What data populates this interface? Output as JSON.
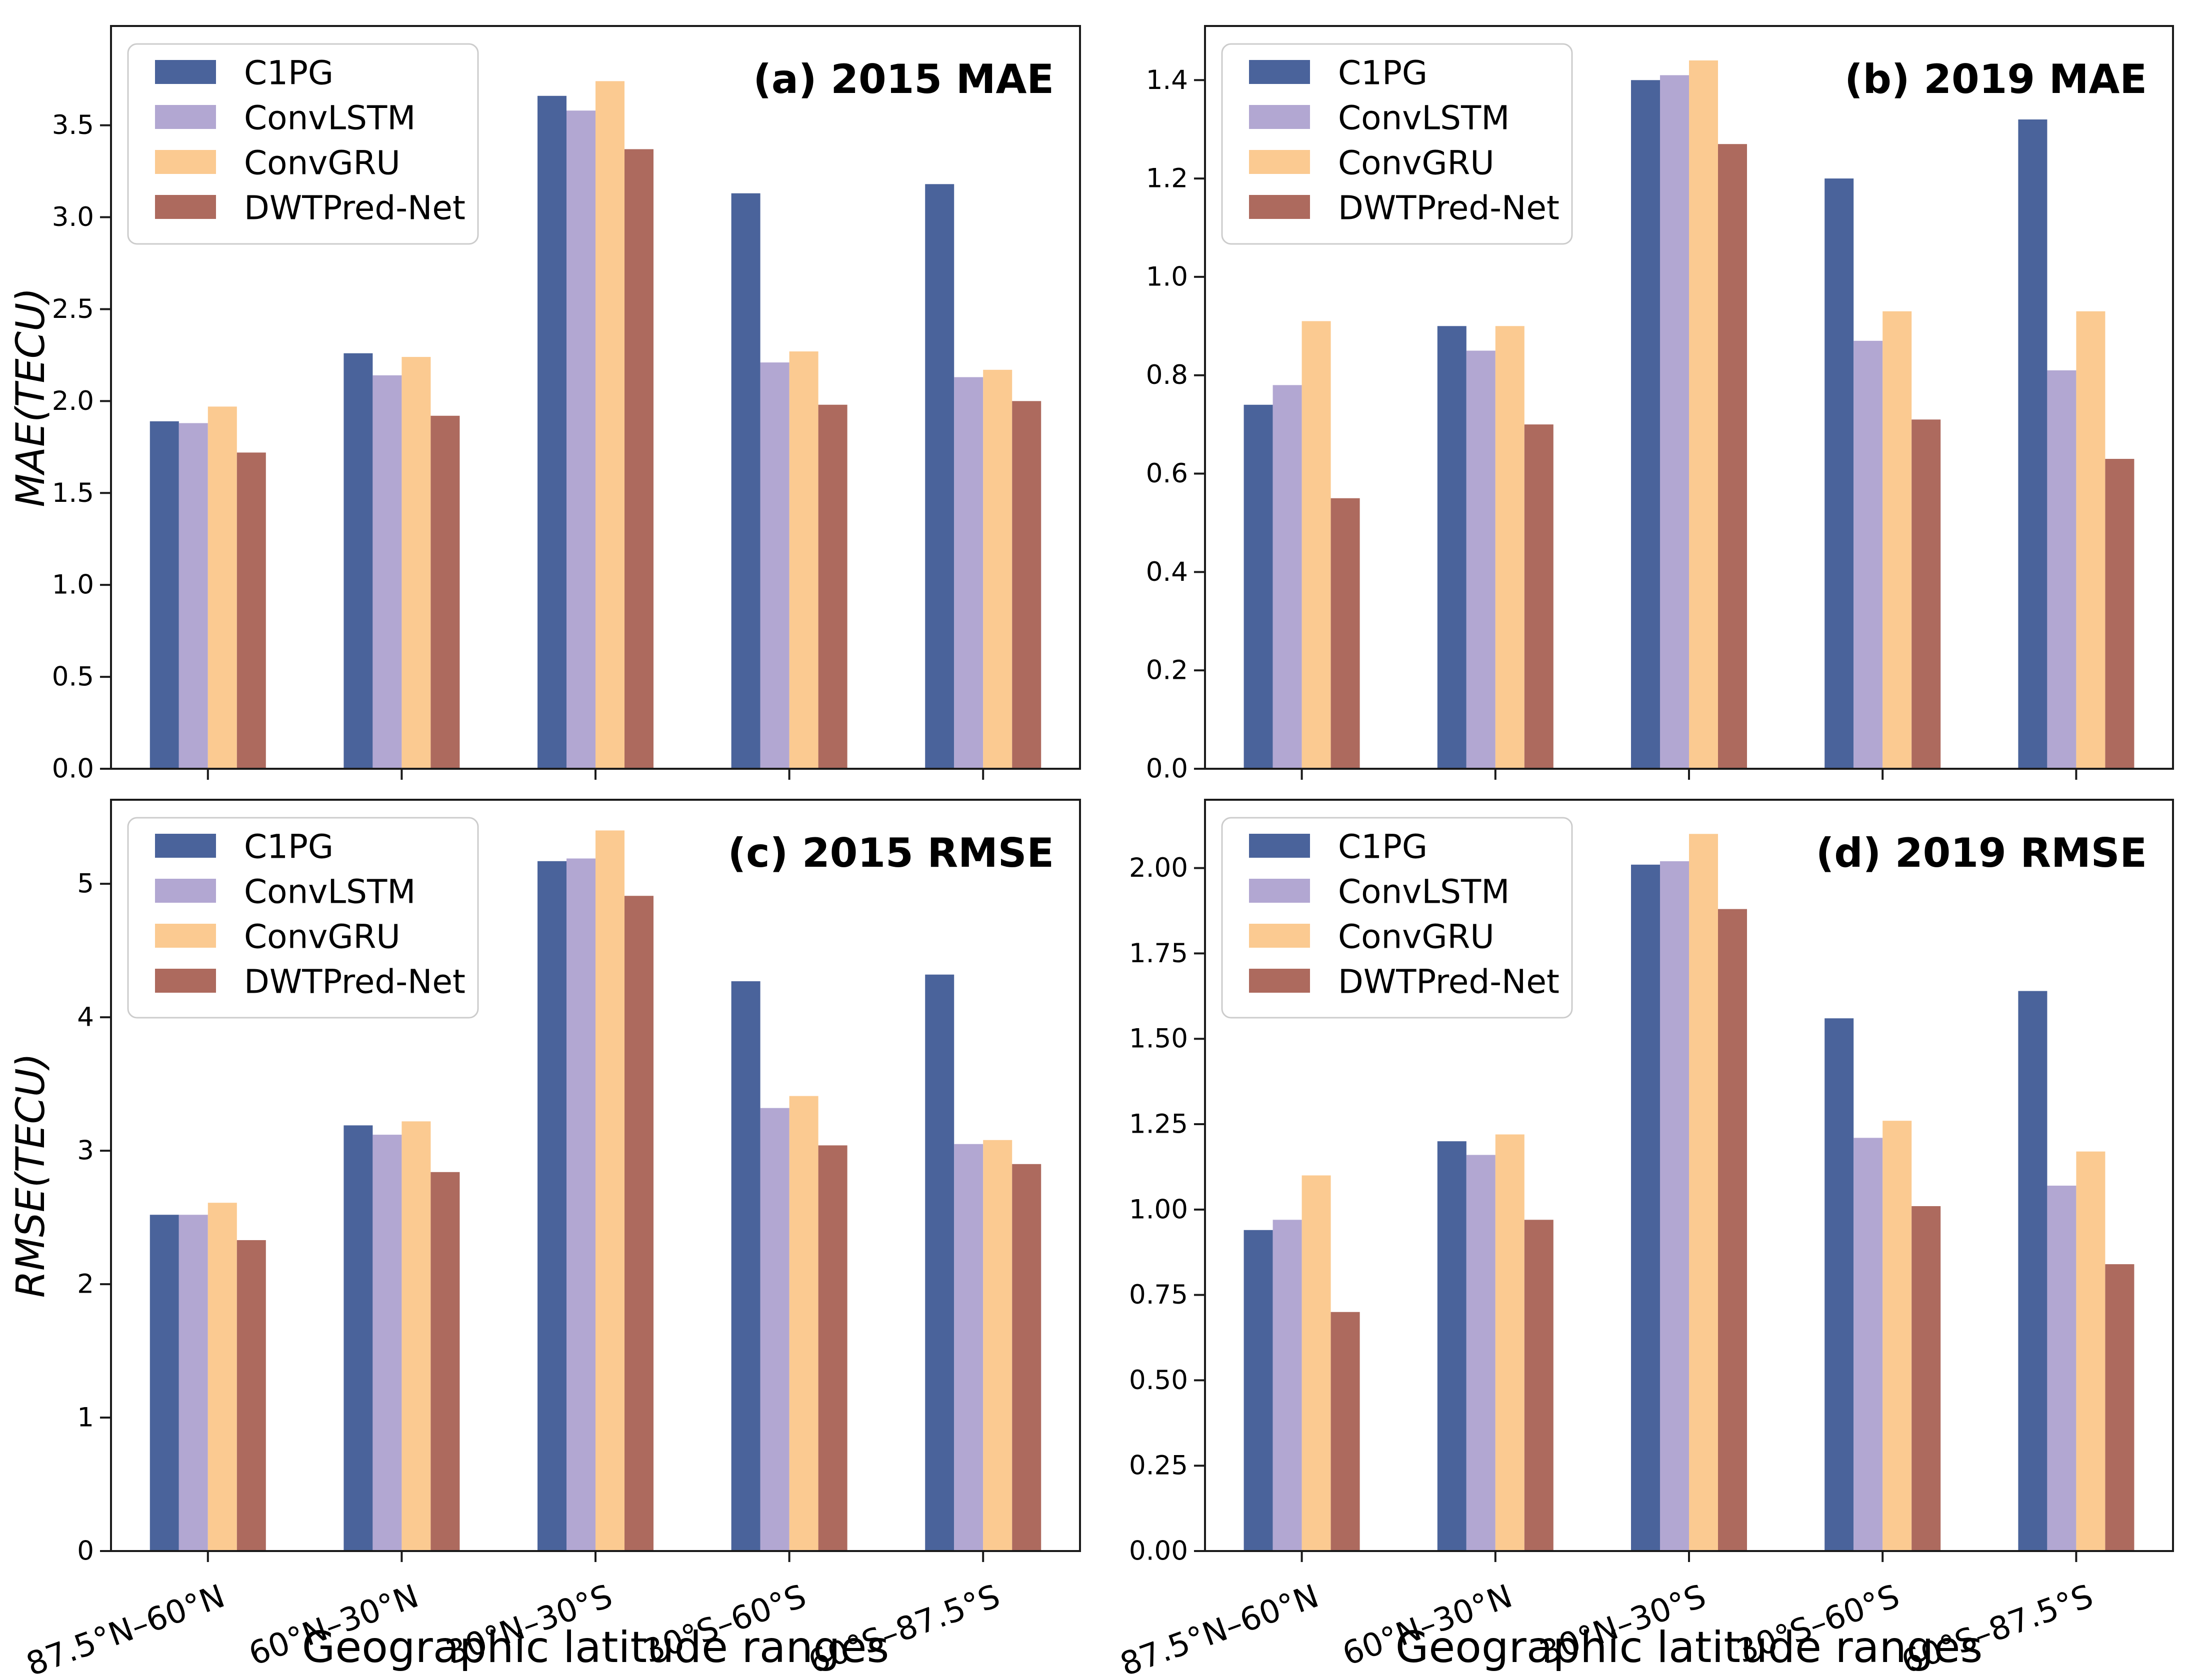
{
  "figure": {
    "xlabel": "Geographic latitude ranges",
    "categories": [
      "87.5°N–60°N",
      "60°N–30°N",
      "30°N–30°S",
      "30°S–60°S",
      "60°S–87.5°S"
    ],
    "legend_labels": [
      "C1PG",
      "ConvLSTM",
      "ConvGRU",
      "DWTPred-Net"
    ],
    "series_colors": {
      "C1PG": "#4a639b",
      "ConvLSTM": "#b2a7d2",
      "ConvGRU": "#fbca91",
      "DWTPred-Net": "#ad6a5e"
    },
    "background_color": "#ffffff",
    "axis_color": "#1a1a1a",
    "legend_border_color": "#cccccc"
  },
  "chart_data": [
    {
      "id": "a",
      "type": "bar",
      "title": "(a) 2015 MAE",
      "ylabel": "MAE(TECU)",
      "ylim": [
        0,
        4.04
      ],
      "yticks": [
        "0.0",
        "0.5",
        "1.0",
        "1.5",
        "2.0",
        "2.5",
        "3.0",
        "3.5"
      ],
      "grid": false,
      "legend_position": "upper left",
      "show_x_tick_labels": false,
      "categories": [
        "87.5°N–60°N",
        "60°N–30°N",
        "30°N–30°S",
        "30°S–60°S",
        "60°S–87.5°S"
      ],
      "series": [
        {
          "name": "C1PG",
          "values": [
            1.89,
            2.26,
            3.66,
            3.13,
            3.18
          ]
        },
        {
          "name": "ConvLSTM",
          "values": [
            1.88,
            2.14,
            3.58,
            2.21,
            2.13
          ]
        },
        {
          "name": "ConvGRU",
          "values": [
            1.97,
            2.24,
            3.74,
            2.27,
            2.17
          ]
        },
        {
          "name": "DWTPred-Net",
          "values": [
            1.72,
            1.92,
            3.37,
            1.98,
            2.0
          ]
        }
      ]
    },
    {
      "id": "b",
      "type": "bar",
      "title": "(b) 2019 MAE",
      "ylim": [
        0,
        1.51
      ],
      "yticks": [
        "0.0",
        "0.2",
        "0.4",
        "0.6",
        "0.8",
        "1.0",
        "1.2",
        "1.4"
      ],
      "grid": false,
      "legend_position": "upper left",
      "show_x_tick_labels": false,
      "categories": [
        "87.5°N–60°N",
        "60°N–30°N",
        "30°N–30°S",
        "30°S–60°S",
        "60°S–87.5°S"
      ],
      "series": [
        {
          "name": "C1PG",
          "values": [
            0.74,
            0.9,
            1.4,
            1.2,
            1.32
          ]
        },
        {
          "name": "ConvLSTM",
          "values": [
            0.78,
            0.85,
            1.41,
            0.87,
            0.81
          ]
        },
        {
          "name": "ConvGRU",
          "values": [
            0.91,
            0.9,
            1.44,
            0.93,
            0.93
          ]
        },
        {
          "name": "DWTPred-Net",
          "values": [
            0.55,
            0.7,
            1.27,
            0.71,
            0.63
          ]
        }
      ]
    },
    {
      "id": "c",
      "type": "bar",
      "title": "(c) 2015 RMSE",
      "ylabel": "RMSE(TECU)",
      "ylim": [
        0,
        5.63
      ],
      "yticks": [
        "0",
        "1",
        "2",
        "3",
        "4",
        "5"
      ],
      "grid": false,
      "legend_position": "upper left",
      "show_x_tick_labels": true,
      "categories": [
        "87.5°N–60°N",
        "60°N–30°N",
        "30°N–30°S",
        "30°S–60°S",
        "60°S–87.5°S"
      ],
      "series": [
        {
          "name": "C1PG",
          "values": [
            2.52,
            3.19,
            5.17,
            4.27,
            4.32
          ]
        },
        {
          "name": "ConvLSTM",
          "values": [
            2.52,
            3.12,
            5.19,
            3.32,
            3.05
          ]
        },
        {
          "name": "ConvGRU",
          "values": [
            2.61,
            3.22,
            5.4,
            3.41,
            3.08
          ]
        },
        {
          "name": "DWTPred-Net",
          "values": [
            2.33,
            2.84,
            4.91,
            3.04,
            2.9
          ]
        }
      ]
    },
    {
      "id": "d",
      "type": "bar",
      "title": "(d) 2019 RMSE",
      "ylim": [
        0,
        2.2
      ],
      "yticks": [
        "0.00",
        "0.25",
        "0.50",
        "0.75",
        "1.00",
        "1.25",
        "1.50",
        "1.75",
        "2.00"
      ],
      "grid": false,
      "legend_position": "upper left",
      "show_x_tick_labels": true,
      "categories": [
        "87.5°N–60°N",
        "60°N–30°N",
        "30°N–30°S",
        "30°S–60°S",
        "60°S–87.5°S"
      ],
      "series": [
        {
          "name": "C1PG",
          "values": [
            0.94,
            1.2,
            2.01,
            1.56,
            1.64
          ]
        },
        {
          "name": "ConvLSTM",
          "values": [
            0.97,
            1.16,
            2.02,
            1.21,
            1.07
          ]
        },
        {
          "name": "ConvGRU",
          "values": [
            1.1,
            1.22,
            2.1,
            1.26,
            1.17
          ]
        },
        {
          "name": "DWTPred-Net",
          "values": [
            0.7,
            0.97,
            1.88,
            1.01,
            0.84
          ]
        }
      ]
    }
  ]
}
